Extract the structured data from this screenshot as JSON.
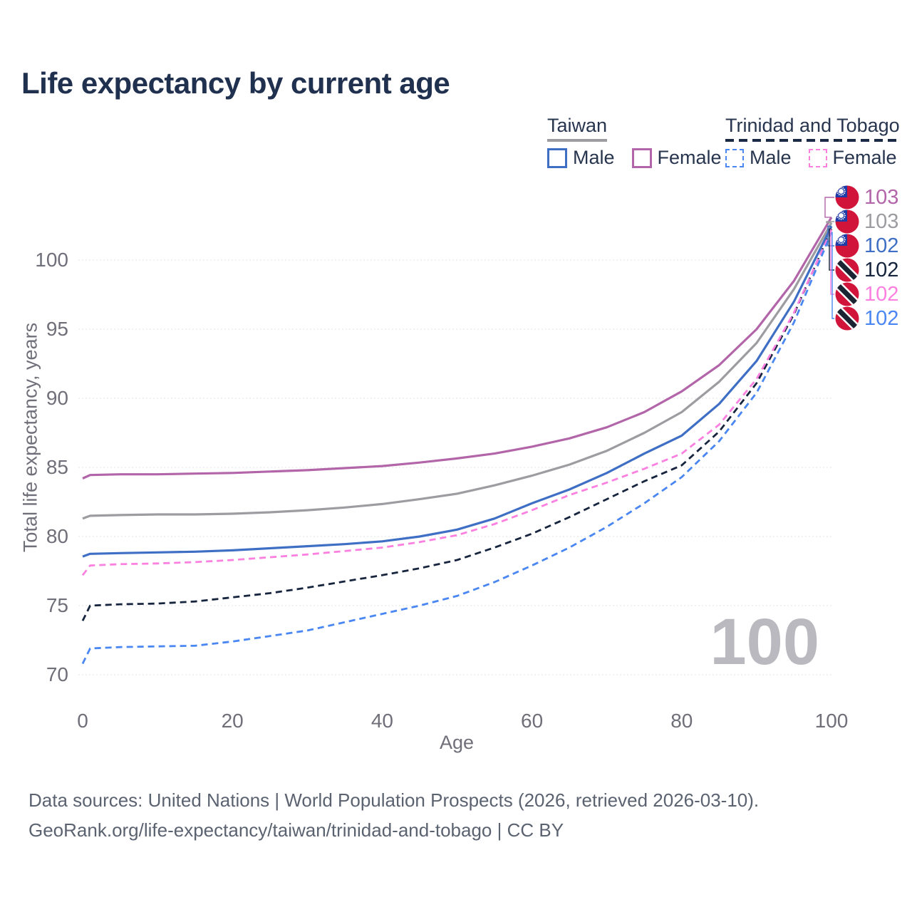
{
  "chart_data": {
    "type": "line",
    "title": "Life expectancy by current age",
    "xlabel": "Age",
    "ylabel": "Total life expectancy, years",
    "x_ticks": [
      0,
      20,
      40,
      60,
      80,
      100
    ],
    "y_ticks": [
      70,
      75,
      80,
      85,
      90,
      95,
      100
    ],
    "xlim": [
      0,
      100
    ],
    "ylim": [
      69,
      104
    ],
    "grid": "horizontal-dotted",
    "legend_position": "top-right",
    "watermark_age": "100",
    "ages": [
      0,
      1,
      5,
      10,
      15,
      20,
      25,
      30,
      35,
      40,
      45,
      50,
      55,
      60,
      65,
      70,
      75,
      80,
      85,
      90,
      95,
      100
    ],
    "series": [
      {
        "id": "taiwan-female",
        "name": "Taiwan Female",
        "style": "solid",
        "color": "#b265a8",
        "flag": "taiwan",
        "end_label": "103",
        "values": [
          84.2,
          84.45,
          84.5,
          84.5,
          84.55,
          84.6,
          84.7,
          84.8,
          84.95,
          85.1,
          85.35,
          85.65,
          86.0,
          86.5,
          87.1,
          87.9,
          89.0,
          90.5,
          92.4,
          95.0,
          98.5,
          103.1
        ]
      },
      {
        "id": "taiwan-total",
        "name": "Taiwan (both sexes)",
        "style": "solid",
        "color": "#9c9ca1",
        "flag": "taiwan",
        "end_label": "103",
        "values": [
          81.3,
          81.5,
          81.55,
          81.6,
          81.6,
          81.65,
          81.75,
          81.9,
          82.1,
          82.35,
          82.7,
          83.1,
          83.7,
          84.4,
          85.2,
          86.2,
          87.5,
          89.0,
          91.2,
          94.0,
          97.9,
          102.7
        ]
      },
      {
        "id": "taiwan-male",
        "name": "Taiwan Male",
        "style": "solid",
        "color": "#3e6fc4",
        "flag": "taiwan",
        "end_label": "102",
        "values": [
          78.55,
          78.75,
          78.8,
          78.85,
          78.9,
          79.0,
          79.15,
          79.3,
          79.45,
          79.65,
          80.0,
          80.5,
          81.3,
          82.4,
          83.4,
          84.6,
          86.0,
          87.3,
          89.6,
          92.7,
          97.0,
          102.45
        ]
      },
      {
        "id": "tt-total",
        "name": "Trinidad and Tobago (both sexes)",
        "style": "dashed",
        "color": "#16243d",
        "flag": "trinidad-and-tobago",
        "end_label": "102",
        "values": [
          73.9,
          75.0,
          75.1,
          75.15,
          75.3,
          75.6,
          75.9,
          76.3,
          76.75,
          77.2,
          77.7,
          78.3,
          79.2,
          80.2,
          81.4,
          82.7,
          84.0,
          85.15,
          87.6,
          91.1,
          96.1,
          102.25
        ]
      },
      {
        "id": "tt-female",
        "name": "Trinidad and Tobago Female",
        "style": "dashed",
        "color": "#fb80e0",
        "flag": "trinidad-and-tobago",
        "end_label": "102",
        "values": [
          77.2,
          77.9,
          78.0,
          78.05,
          78.15,
          78.3,
          78.5,
          78.7,
          78.95,
          79.2,
          79.6,
          80.1,
          80.9,
          81.9,
          83.0,
          83.9,
          84.9,
          86.0,
          88.1,
          91.4,
          96.2,
          102.2
        ]
      },
      {
        "id": "tt-male",
        "name": "Trinidad and Tobago Male",
        "style": "dashed",
        "color": "#4a87f2",
        "flag": "trinidad-and-tobago",
        "end_label": "102",
        "values": [
          70.8,
          71.9,
          72.0,
          72.05,
          72.1,
          72.4,
          72.8,
          73.2,
          73.8,
          74.4,
          75.0,
          75.7,
          76.7,
          77.9,
          79.2,
          80.7,
          82.4,
          84.3,
          86.9,
          90.4,
          95.5,
          102.0
        ]
      }
    ]
  },
  "legend": {
    "groups": [
      {
        "title": "Taiwan",
        "line_style": "solid",
        "line_color": "#9c9ca1",
        "items": [
          {
            "label": "Male",
            "color": "#3e6fc4",
            "style": "solid"
          },
          {
            "label": "Female",
            "color": "#b265a8",
            "style": "solid"
          }
        ]
      },
      {
        "title": "Trinidad and Tobago",
        "line_style": "dashed",
        "line_color": "#1b2a44",
        "items": [
          {
            "label": "Male",
            "color": "#4a87f2",
            "style": "dashed"
          },
          {
            "label": "Female",
            "color": "#fb80e0",
            "style": "dashed"
          }
        ]
      }
    ]
  },
  "footer": {
    "line1": "Data sources: United Nations | World Population Prospects (2026, retrieved 2026-03-10).",
    "line2": "GeoRank.org/life-expectancy/taiwan/trinidad-and-tobago | CC BY"
  },
  "theme": {
    "title_color": "#20304f",
    "axis_text_color": "#6f6f79",
    "grid_color": "#e3e3e8",
    "watermark_color": "#b9b9bf",
    "footer_color": "#5b6270",
    "flag_red": "#d0143a",
    "taiwan_canton_blue": "#1e3ca8",
    "tt_band_black": "#1b2433"
  }
}
